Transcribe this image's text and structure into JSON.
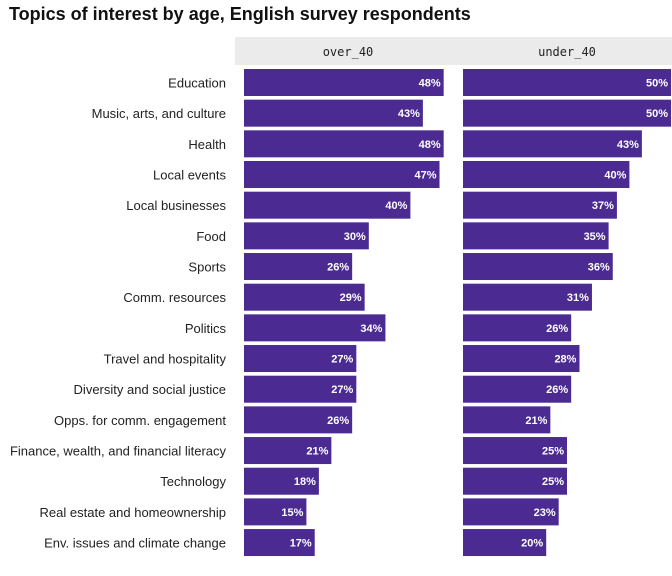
{
  "chart_data": {
    "type": "bar",
    "orientation": "horizontal",
    "title": "Topics of interest by age, English survey respondents",
    "xlabel": "",
    "ylabel": "",
    "xlim": [
      0,
      50
    ],
    "grid": false,
    "bar_color": "#4b2a91",
    "strip_color": "#ebebeb",
    "categories": [
      "Education",
      "Music, arts, and culture",
      "Health",
      "Local events",
      "Local businesses",
      "Food",
      "Sports",
      "Comm. resources",
      "Politics",
      "Travel and hospitality",
      "Diversity and social justice",
      "Opps. for comm. engagement",
      "Finance, wealth, and financial literacy",
      "Technology",
      "Real estate and homeownership",
      "Env. issues and climate change"
    ],
    "panels": [
      {
        "name": "over_40",
        "values": [
          48,
          43,
          48,
          47,
          40,
          30,
          26,
          29,
          34,
          27,
          27,
          26,
          21,
          18,
          15,
          17
        ],
        "labels": [
          "48%",
          "43%",
          "48%",
          "47%",
          "40%",
          "30%",
          "26%",
          "29%",
          "34%",
          "27%",
          "27%",
          "26%",
          "21%",
          "18%",
          "15%",
          "17%"
        ]
      },
      {
        "name": "under_40",
        "values": [
          50,
          50,
          43,
          40,
          37,
          35,
          36,
          31,
          26,
          28,
          26,
          21,
          25,
          25,
          23,
          20
        ],
        "labels": [
          "50%",
          "50%",
          "43%",
          "40%",
          "37%",
          "35%",
          "36%",
          "31%",
          "26%",
          "28%",
          "26%",
          "21%",
          "25%",
          "25%",
          "23%",
          "20%"
        ]
      }
    ]
  }
}
